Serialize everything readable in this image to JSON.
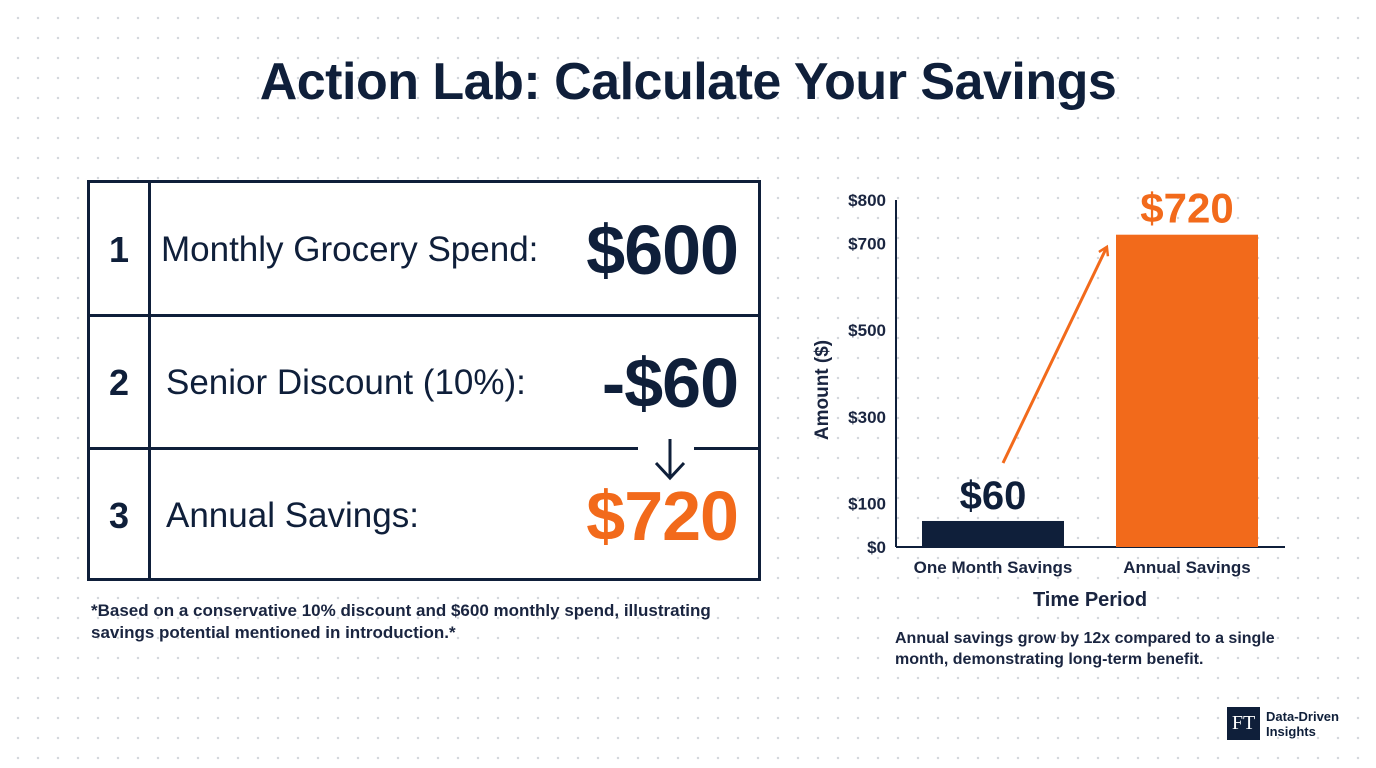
{
  "title": "Action Lab: Calculate Your Savings",
  "calculation": {
    "rows": [
      {
        "number": "1",
        "label": "Monthly Grocery Spend:",
        "value": "$600"
      },
      {
        "number": "2",
        "label": "Senior Discount (10%):",
        "value": "-$60"
      },
      {
        "number": "3",
        "label": "Annual Savings:",
        "value": "$720"
      }
    ],
    "footnote": "*Based on a conservative 10% discount and $600 monthly spend, illustrating savings potential mentioned in introduction.*"
  },
  "chart_data": {
    "type": "bar",
    "categories": [
      "One Month Savings",
      "Annual Savings"
    ],
    "values": [
      60,
      720
    ],
    "data_labels": [
      "$60",
      "$720"
    ],
    "xlabel": "Time Period",
    "ylabel": "Amount ($)",
    "ylim": [
      0,
      800
    ],
    "yticks": [
      0,
      100,
      300,
      500,
      700,
      800
    ],
    "ytick_labels": [
      "$0",
      "$100",
      "$300",
      "$500",
      "$700",
      "$800"
    ],
    "bar_colors": [
      "#0f1f3a",
      "#f26a1b"
    ],
    "grid": false,
    "legend": "none",
    "annotation": "arrow from One Month Savings bar to Annual Savings bar"
  },
  "chart_note": "Annual savings grow by 12x compared to a single month, demonstrating long-term benefit.",
  "logo": {
    "mark": "FT",
    "text": "Data-Driven Insights"
  },
  "colors": {
    "navy": "#0f1f3a",
    "orange": "#f26a1b"
  }
}
